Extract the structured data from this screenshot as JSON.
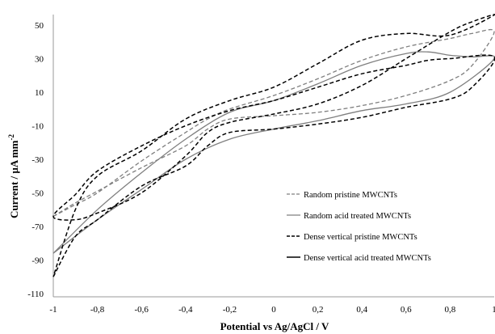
{
  "chart_data": {
    "type": "line",
    "title": "",
    "xlabel": "Potential vs Ag/AgCl / V",
    "ylabel": "Current / µA mm",
    "ylabel_sup": "-2",
    "xlim": [
      -1,
      1
    ],
    "ylim": [
      -110,
      50
    ],
    "x_ticks": [
      -1,
      -0.8,
      -0.6,
      -0.4,
      -0.2,
      0,
      0.2,
      0.4,
      0.6,
      0.8,
      1
    ],
    "x_tick_labels": [
      "-1",
      "-0,8",
      "-0,6",
      "-0,4",
      "-0,2",
      "0",
      "0,2",
      "0,4",
      "0,6",
      "0,8",
      "1"
    ],
    "y_ticks": [
      50,
      30,
      10,
      -10,
      -30,
      -50,
      -70,
      -90,
      -110
    ],
    "y_tick_labels": [
      "50",
      "30",
      "10",
      "-10",
      "-30",
      "-50",
      "-70",
      "-90",
      "-110"
    ],
    "grid": false,
    "legend_position": "lower-right",
    "series": [
      {
        "name": "Random pristine MWCNTs",
        "color": "#7f7f7f",
        "dash": "dashed",
        "x": [
          -1.0,
          -0.9,
          -0.8,
          -0.6,
          -0.4,
          -0.3,
          -0.2,
          0.0,
          0.2,
          0.4,
          0.6,
          0.8,
          0.9,
          1.0,
          0.9,
          0.8,
          0.6,
          0.4,
          0.2,
          0.0,
          -0.2,
          -0.3,
          -0.4,
          -0.6,
          -0.8,
          -0.9,
          -1.0
        ],
        "y": [
          -64,
          -56,
          -49,
          -35,
          -22,
          -12,
          -6,
          -4,
          -2,
          2,
          8,
          17,
          26,
          46,
          45,
          42,
          37,
          29,
          18,
          8,
          0,
          -6,
          -14,
          -31,
          -50,
          -57,
          -64
        ]
      },
      {
        "name": "Random acid treated MWCNTs",
        "color": "#7f7f7f",
        "dash": "solid",
        "x": [
          -1.0,
          -0.8,
          -0.6,
          -0.4,
          -0.2,
          0.0,
          0.2,
          0.4,
          0.6,
          0.8,
          1.0,
          0.9,
          0.8,
          0.7,
          0.6,
          0.4,
          0.2,
          0.0,
          -0.2,
          -0.4,
          -0.6,
          -0.8,
          -1.0
        ],
        "y": [
          -86,
          -66,
          -48,
          -30,
          -18,
          -12,
          -7,
          -1,
          3,
          10,
          30,
          31,
          32,
          34,
          33,
          26,
          15,
          5,
          -2,
          -18,
          -38,
          -60,
          -86
        ]
      },
      {
        "name": "Dense vertical pristine MWCNTs",
        "color": "#000000",
        "dash": "dashed",
        "x": [
          -1.0,
          -0.9,
          -0.8,
          -0.6,
          -0.4,
          -0.3,
          -0.2,
          0.0,
          0.2,
          0.4,
          0.6,
          0.8,
          0.9,
          1.0,
          0.8,
          0.7,
          0.6,
          0.4,
          0.2,
          0.0,
          -0.2,
          -0.4,
          -0.6,
          -0.8,
          -0.9,
          -1.0,
          -0.9,
          -0.8,
          -0.6,
          -0.4,
          -0.3,
          -0.2,
          0.0,
          0.2,
          0.4,
          0.6,
          0.8,
          0.9,
          1.0,
          0.8,
          0.6,
          0.4,
          0.2,
          0.0,
          -0.2,
          -0.4,
          -0.6,
          -0.8,
          -0.9,
          -1.0
        ],
        "y": [
          -100,
          -76,
          -66,
          -46,
          -34,
          -22,
          -14,
          -12,
          -9,
          -5,
          1,
          6,
          13,
          31,
          30,
          29,
          26,
          21,
          13,
          5,
          -1,
          -10,
          -22,
          -37,
          -51,
          -64,
          -66,
          -62,
          -50,
          -28,
          -14,
          -8,
          -3,
          3,
          14,
          30,
          46,
          52,
          56,
          44,
          45,
          41,
          27,
          13,
          5,
          -6,
          -25,
          -40,
          -60,
          -100
        ]
      },
      {
        "name": "Dense vertical acid treated MWCNTs",
        "color": "#000000",
        "dash": "solid",
        "x": [],
        "y": []
      }
    ]
  }
}
